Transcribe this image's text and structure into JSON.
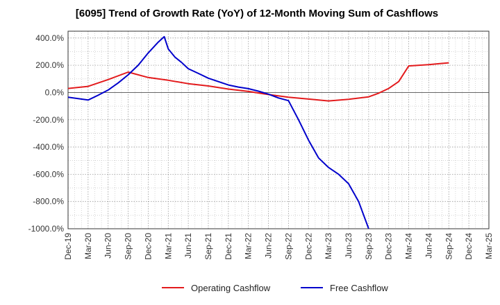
{
  "chart_data": {
    "type": "line",
    "title": "[6095]  Trend of Growth Rate (YoY) of 12-Month Moving Sum of Cashflows",
    "xlabel": "",
    "ylabel": "",
    "ylim": [
      -1000,
      450
    ],
    "yticks": [
      400,
      200,
      0,
      -200,
      -400,
      -600,
      -800,
      -1000
    ],
    "ytick_labels": [
      "400.0%",
      "200.0%",
      "0.0%",
      "-200.0%",
      "-400.0%",
      "-600.0%",
      "-800.0%",
      "-1000.0%"
    ],
    "x_labels": [
      "Dec-19",
      "Mar-20",
      "Jun-20",
      "Sep-20",
      "Dec-20",
      "Mar-21",
      "Jun-21",
      "Sep-21",
      "Dec-21",
      "Mar-22",
      "Jun-22",
      "Sep-22",
      "Dec-22",
      "Mar-23",
      "Jun-23",
      "Sep-23",
      "Dec-23",
      "Mar-24",
      "Jun-24",
      "Sep-24",
      "Dec-24",
      "Mar-25"
    ],
    "grid": true,
    "legend_position": "bottom",
    "series": [
      {
        "name": "Operating Cashflow",
        "color": "#e31a1c",
        "x": [
          0,
          1,
          2,
          3,
          4,
          5,
          6,
          7,
          8,
          9,
          10,
          11,
          12,
          13,
          14,
          15,
          15.5,
          16,
          16.5,
          17,
          18,
          19
        ],
        "values": [
          30,
          45,
          95,
          150,
          110,
          90,
          65,
          48,
          25,
          8,
          -15,
          -35,
          -48,
          -62,
          -50,
          -32,
          -5,
          30,
          80,
          195,
          205,
          218
        ]
      },
      {
        "name": "Free Cashflow",
        "color": "#0000cc",
        "x": [
          0,
          1,
          1.5,
          2,
          2.5,
          3,
          3.5,
          4,
          4.5,
          4.8,
          5,
          5.33,
          5.67,
          6,
          6.5,
          7,
          7.5,
          8,
          8.5,
          9,
          9.5,
          10,
          10.5,
          11,
          11.5,
          12,
          12.5,
          13,
          13.5,
          14,
          14.5,
          15
        ],
        "values": [
          -35,
          -55,
          -20,
          18,
          70,
          130,
          200,
          290,
          370,
          410,
          320,
          260,
          220,
          175,
          140,
          105,
          80,
          55,
          40,
          28,
          10,
          -12,
          -40,
          -60,
          -200,
          -350,
          -480,
          -550,
          -600,
          -670,
          -800,
          -1000
        ]
      }
    ]
  }
}
